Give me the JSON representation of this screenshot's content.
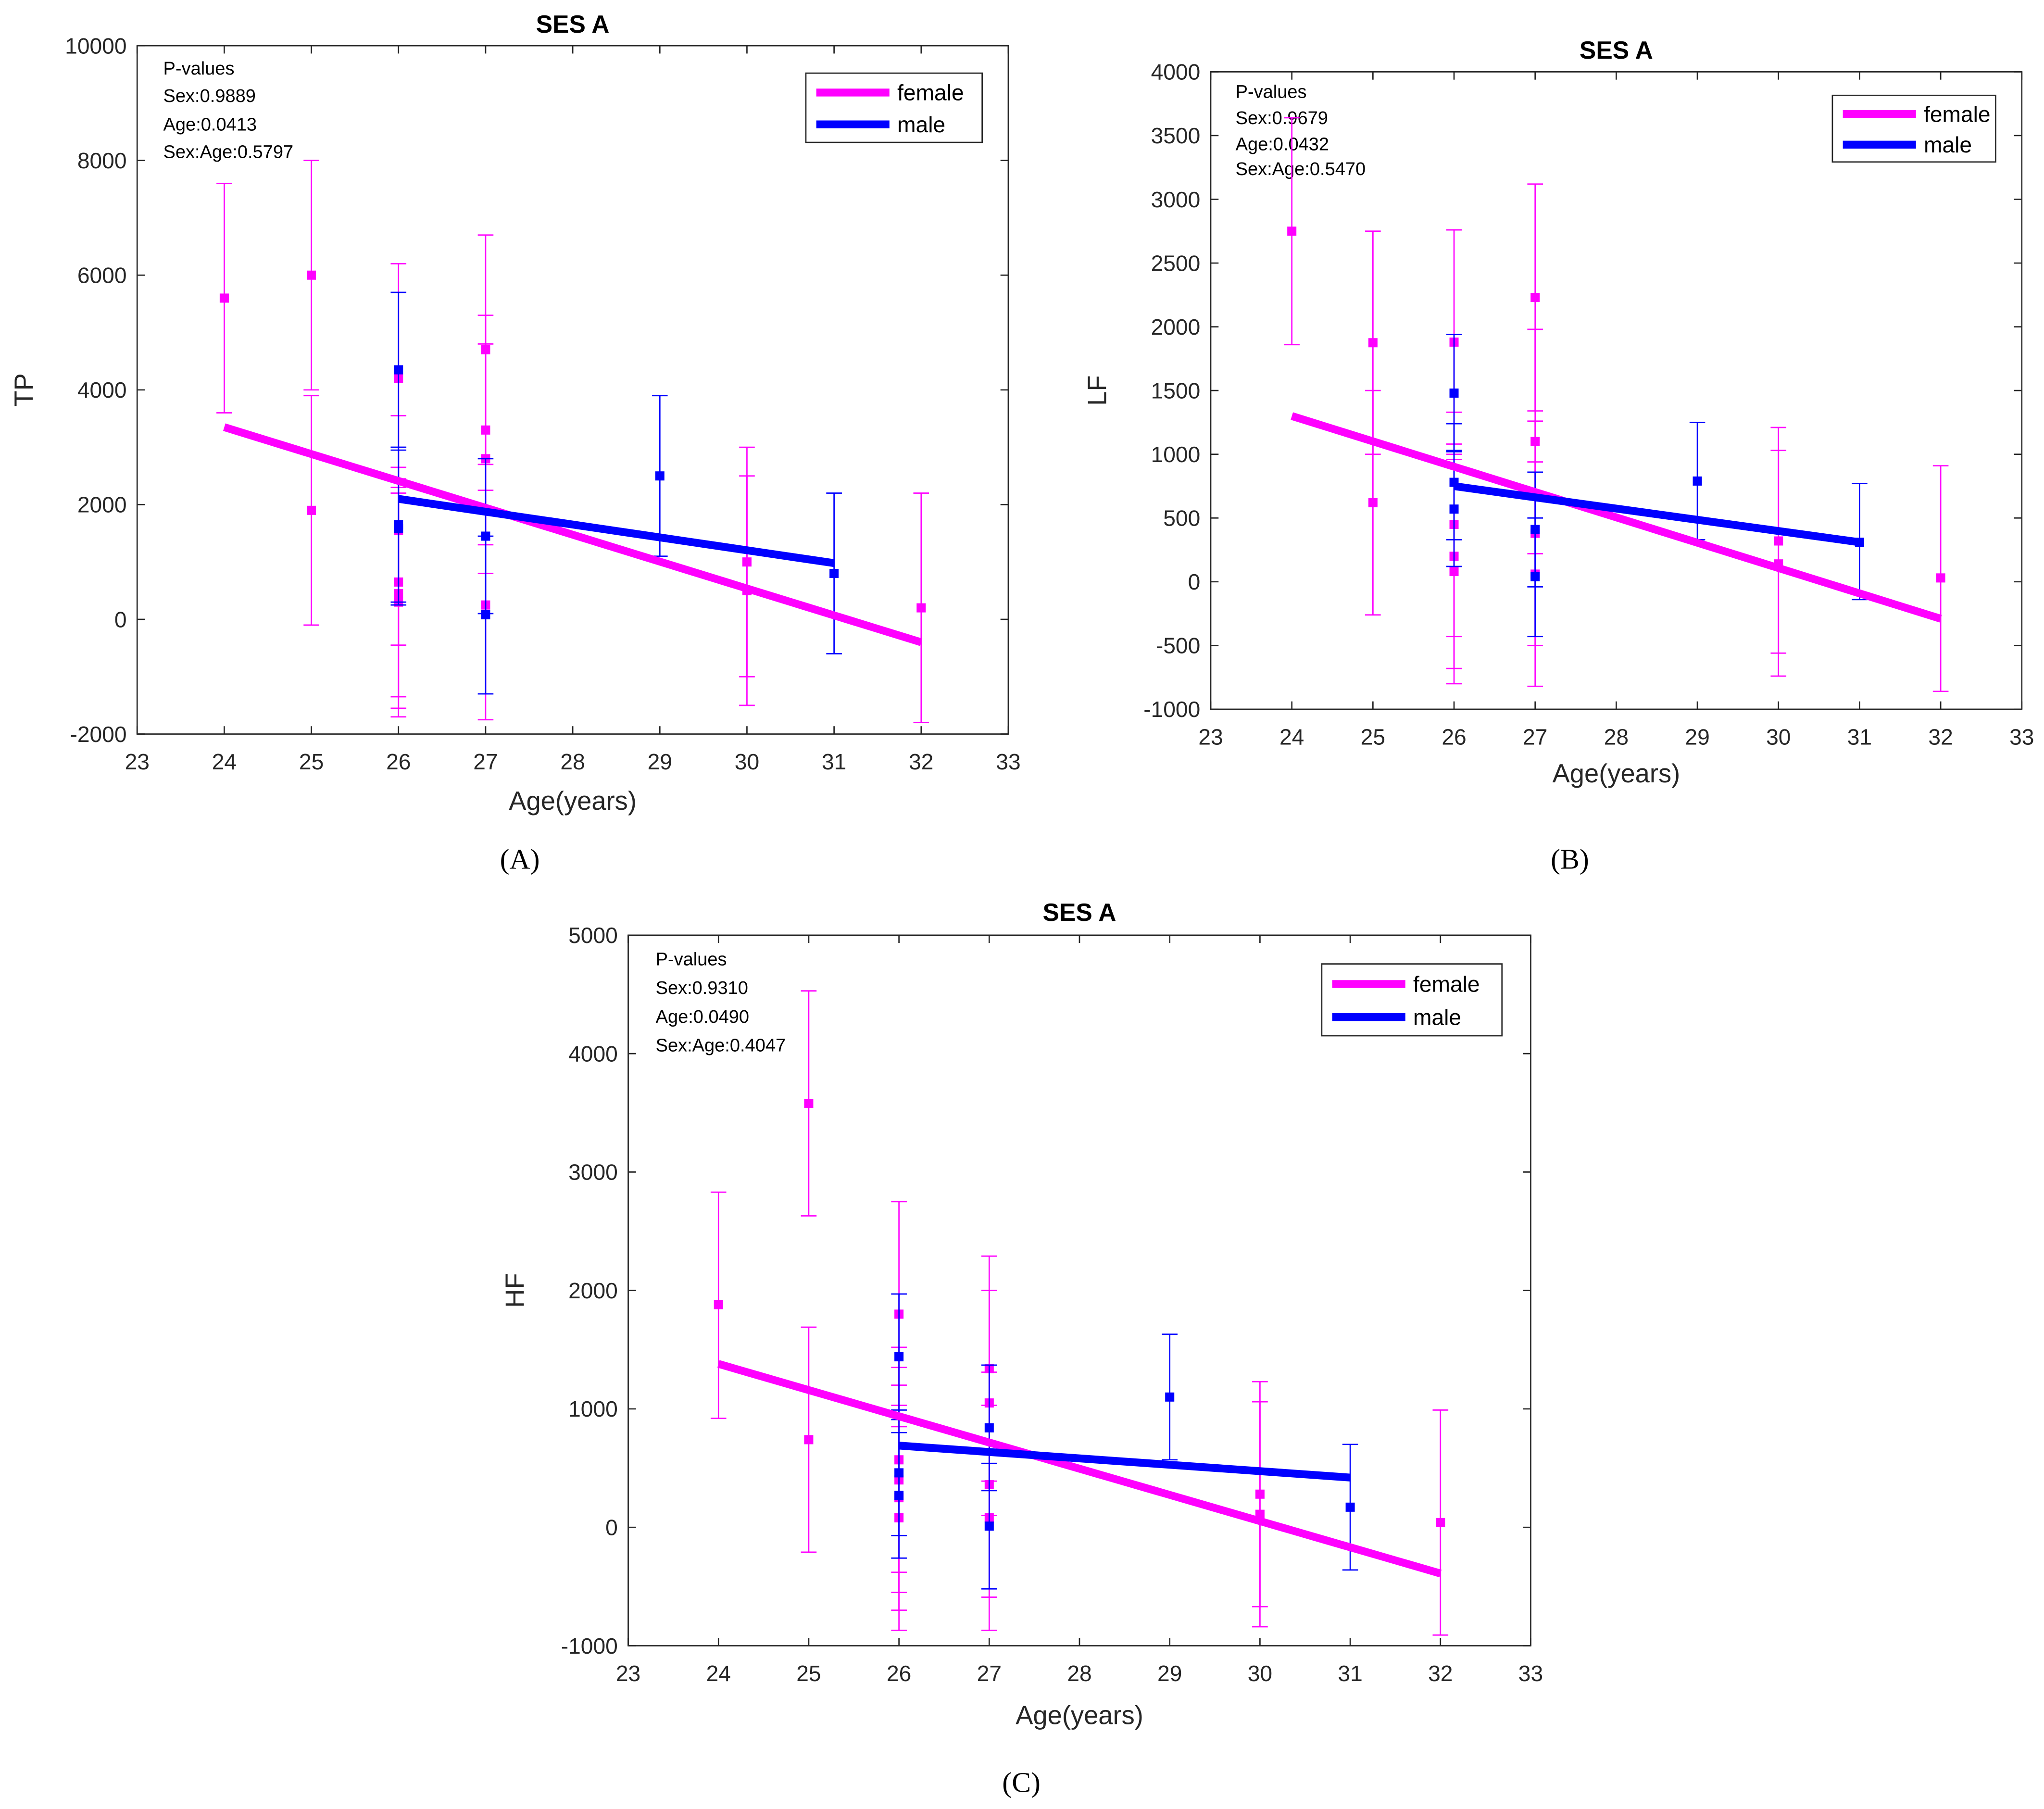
{
  "colors": {
    "female": "#ff00ff",
    "male": "#0000ff"
  },
  "chart_data": [
    {
      "type": "scatter",
      "panel_label": "(A)",
      "title": "SES A",
      "xlabel": "Age(years)",
      "ylabel": "TP",
      "xlim": [
        23,
        33
      ],
      "ylim": [
        -2000,
        10000
      ],
      "xticks": [
        "23",
        "24",
        "25",
        "26",
        "27",
        "28",
        "29",
        "30",
        "31",
        "32",
        "33"
      ],
      "yticks": [
        "-2000",
        "0",
        "2000",
        "4000",
        "6000",
        "8000",
        "10000"
      ],
      "pvalues": [
        "P-values",
        "Sex:0.9889",
        "Age:0.0413",
        "Sex:Age:0.5797"
      ],
      "legend": {
        "position": "top-right",
        "entries": [
          "female",
          "male"
        ]
      },
      "series": [
        {
          "name": "female",
          "points": [
            [
              24,
              5600,
              3600,
              7600
            ],
            [
              25,
              6000,
              4000,
              8000
            ],
            [
              25,
              1900,
              -100,
              3900
            ],
            [
              26,
              4200,
              2200,
              6200
            ],
            [
              26,
              1550,
              -450,
              3550
            ],
            [
              26,
              650,
              -1350,
              2650
            ],
            [
              26,
              450,
              -1550,
              2450
            ],
            [
              26,
              300,
              -1700,
              2300
            ],
            [
              27,
              4700,
              2700,
              6700
            ],
            [
              27,
              3300,
              1300,
              5300
            ],
            [
              27,
              2800,
              800,
              4800
            ],
            [
              27,
              250,
              -1750,
              2250
            ],
            [
              30,
              1000,
              -1000,
              3000
            ],
            [
              30,
              500,
              -1500,
              2500
            ],
            [
              32,
              200,
              -1800,
              2200
            ]
          ],
          "fit": [
            [
              24,
              3350
            ],
            [
              32,
              -400
            ]
          ]
        },
        {
          "name": "male",
          "points": [
            [
              26,
              4350,
              3000,
              5700
            ],
            [
              26,
              1650,
              300,
              3000
            ],
            [
              26,
              1580,
              250,
              2950
            ],
            [
              27,
              1450,
              100,
              2800
            ],
            [
              27,
              80,
              -1300,
              1450
            ],
            [
              29,
              2500,
              1100,
              3900
            ],
            [
              31,
              800,
              -600,
              2200
            ]
          ],
          "fit": [
            [
              26,
              2100
            ],
            [
              31,
              980
            ]
          ]
        }
      ]
    },
    {
      "type": "scatter",
      "panel_label": "(B)",
      "title": "SES A",
      "xlabel": "Age(years)",
      "ylabel": "LF",
      "xlim": [
        23,
        33
      ],
      "ylim": [
        -1000,
        4000
      ],
      "xticks": [
        "23",
        "24",
        "25",
        "26",
        "27",
        "28",
        "29",
        "30",
        "31",
        "32",
        "33"
      ],
      "yticks": [
        "-1000",
        "-500",
        "0",
        "500",
        "1000",
        "1500",
        "2000",
        "2500",
        "3000",
        "3500",
        "4000"
      ],
      "pvalues": [
        "P-values",
        "Sex:0.9679",
        "Age:0.0432",
        "Sex:Age:0.5470"
      ],
      "legend": {
        "position": "top-right",
        "entries": [
          "female",
          "male"
        ]
      },
      "series": [
        {
          "name": "female",
          "points": [
            [
              24,
              2750,
              1860,
              3640
            ],
            [
              25,
              1875,
              1000,
              2750
            ],
            [
              25,
              620,
              -260,
              1500
            ],
            [
              26,
              1880,
              1000,
              2760
            ],
            [
              26,
              450,
              -430,
              1330
            ],
            [
              26,
              200,
              -680,
              1080
            ],
            [
              26,
              80,
              -800,
              960
            ],
            [
              27,
              2230,
              1340,
              3120
            ],
            [
              27,
              1100,
              220,
              1980
            ],
            [
              27,
              380,
              -500,
              1260
            ],
            [
              27,
              60,
              -820,
              940
            ],
            [
              30,
              320,
              -560,
              1210
            ],
            [
              30,
              140,
              -740,
              1030
            ],
            [
              32,
              30,
              -860,
              910
            ]
          ],
          "fit": [
            [
              24,
              1300
            ],
            [
              32,
              -290
            ]
          ]
        },
        {
          "name": "male",
          "points": [
            [
              26,
              1480,
              1030,
              1940
            ],
            [
              26,
              780,
              330,
              1240
            ],
            [
              26,
              570,
              120,
              1020
            ],
            [
              27,
              410,
              -40,
              860
            ],
            [
              27,
              40,
              -430,
              500
            ],
            [
              29,
              790,
              330,
              1250
            ],
            [
              31,
              310,
              -140,
              770
            ]
          ],
          "fit": [
            [
              26,
              750
            ],
            [
              31,
              310
            ]
          ]
        }
      ]
    },
    {
      "type": "scatter",
      "panel_label": "(C)",
      "title": "SES A",
      "xlabel": "Age(years)",
      "ylabel": "HF",
      "xlim": [
        23,
        33
      ],
      "ylim": [
        -1000,
        5000
      ],
      "xticks": [
        "23",
        "24",
        "25",
        "26",
        "27",
        "28",
        "29",
        "30",
        "31",
        "32",
        "33"
      ],
      "yticks": [
        "-1000",
        "0",
        "1000",
        "2000",
        "3000",
        "4000",
        "5000"
      ],
      "pvalues": [
        "P-values",
        "Sex:0.9310",
        "Age:0.0490",
        "Sex:Age:0.4047"
      ],
      "legend": {
        "position": "top-right",
        "entries": [
          "female",
          "male"
        ]
      },
      "series": [
        {
          "name": "female",
          "points": [
            [
              24,
              1880,
              920,
              2830
            ],
            [
              25,
              3580,
              2630,
              4530
            ],
            [
              25,
              740,
              -210,
              1690
            ],
            [
              26,
              1800,
              850,
              2750
            ],
            [
              26,
              570,
              -380,
              1520
            ],
            [
              26,
              400,
              -550,
              1350
            ],
            [
              26,
              250,
              -700,
              1200
            ],
            [
              26,
              80,
              -870,
              1030
            ],
            [
              27,
              1340,
              390,
              2290
            ],
            [
              27,
              1050,
              100,
              2000
            ],
            [
              27,
              360,
              -590,
              1310
            ],
            [
              27,
              80,
              -870,
              1030
            ],
            [
              30,
              280,
              -670,
              1230
            ],
            [
              30,
              110,
              -840,
              1060
            ],
            [
              32,
              40,
              -910,
              990
            ]
          ],
          "fit": [
            [
              24,
              1380
            ],
            [
              32,
              -390
            ]
          ]
        },
        {
          "name": "male",
          "points": [
            [
              26,
              1440,
              910,
              1970
            ],
            [
              26,
              460,
              -70,
              990
            ],
            [
              26,
              270,
              -260,
              800
            ],
            [
              27,
              840,
              310,
              1370
            ],
            [
              27,
              10,
              -520,
              540
            ],
            [
              29,
              1100,
              570,
              1630
            ],
            [
              31,
              170,
              -360,
              700
            ]
          ],
          "fit": [
            [
              26,
              690
            ],
            [
              31,
              420
            ]
          ]
        }
      ]
    }
  ]
}
